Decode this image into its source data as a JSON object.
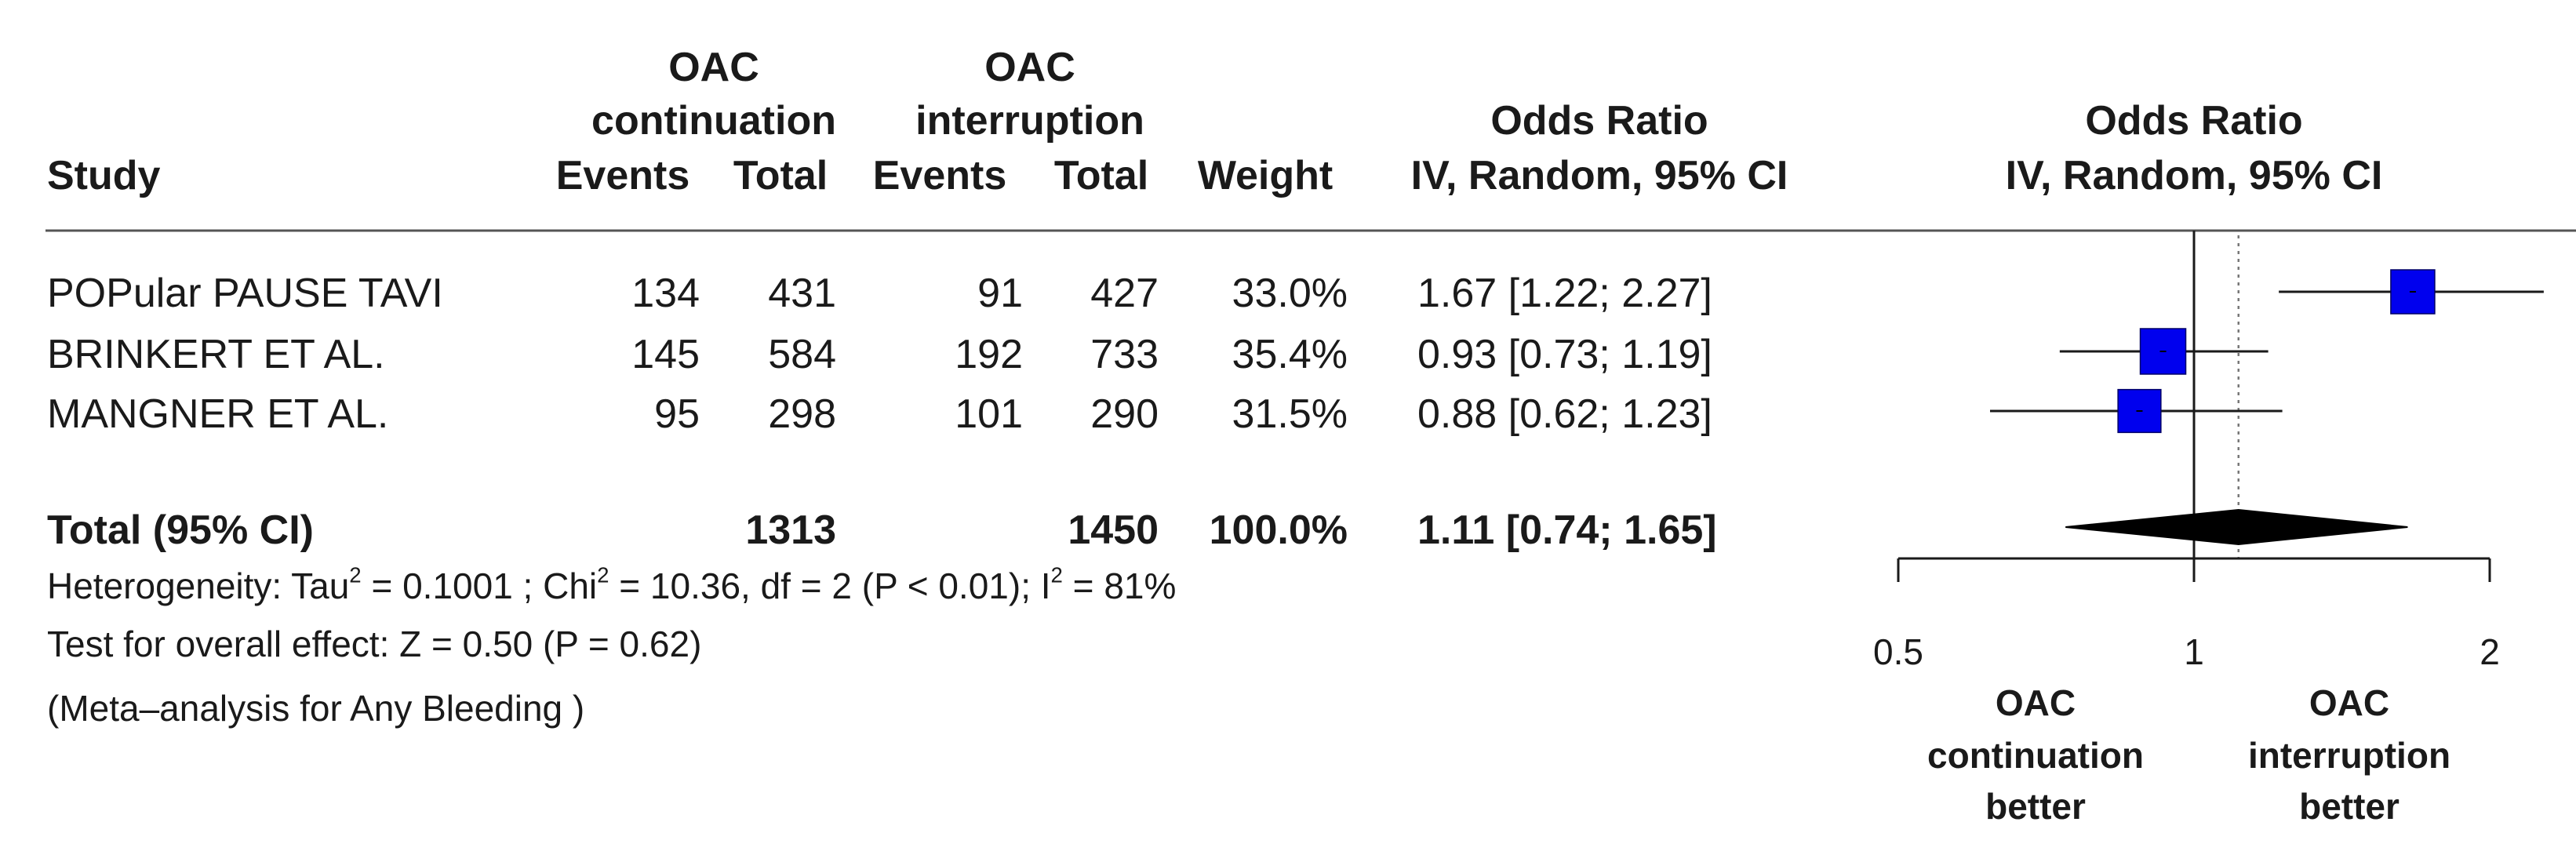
{
  "header": {
    "study": "Study",
    "group1": "OAC",
    "group1_sub": "continuation",
    "group2": "OAC",
    "group2_sub": "interruption",
    "events": "Events",
    "total": "Total",
    "weight": "Weight",
    "or_title": "Odds Ratio",
    "or_method": "IV, Random, 95% CI",
    "plot_title": "Odds Ratio",
    "plot_method": "IV, Random, 95% CI"
  },
  "studies": [
    {
      "name": "POPular PAUSE TAVI",
      "events1": "134",
      "total1": "431",
      "events2": "91",
      "total2": "427",
      "weight": "33.0%",
      "ci_text": "1.67 [1.22; 2.27]",
      "or": 1.67,
      "lower": 1.22,
      "upper": 2.27,
      "weight_value": 33.0
    },
    {
      "name": "BRINKERT ET AL.",
      "events1": "145",
      "total1": "584",
      "events2": "192",
      "total2": "733",
      "weight": "35.4%",
      "ci_text": "0.93 [0.73; 1.19]",
      "or": 0.93,
      "lower": 0.73,
      "upper": 1.19,
      "weight_value": 35.4
    },
    {
      "name": "MANGNER ET AL.",
      "events1": "95",
      "total1": "298",
      "events2": "101",
      "total2": "290",
      "weight": "31.5%",
      "ci_text": "0.88 [0.62; 1.23]",
      "or": 0.88,
      "lower": 0.62,
      "upper": 1.23,
      "weight_value": 31.5
    }
  ],
  "total": {
    "label": "Total (95% CI)",
    "total1": "1313",
    "total2": "1450",
    "weight": "100.0%",
    "ci_text": "1.11 [0.74; 1.65]",
    "or": 1.11,
    "lower": 0.74,
    "upper": 1.65
  },
  "footnotes": {
    "het_prefix": "Heterogeneity: Tau",
    "het_tau2": "= 0.1001 ; Chi",
    "het_chi2": "= 10.36, df = 2 (P < 0.01); I",
    "het_i2": "= 81%",
    "sup2": "2",
    "overall": "Test for overall effect: Z = 0.50 (P = 0.62)",
    "note": "(Meta–analysis for Any Bleeding )"
  },
  "axis": {
    "ticks": [
      0.5,
      1,
      2
    ],
    "tick_labels": [
      "0.5",
      "1",
      "2"
    ],
    "xlim": [
      0.5,
      2
    ],
    "scale": "log",
    "left_label": [
      "OAC",
      "continuation",
      "better"
    ],
    "right_label": [
      "OAC",
      "interruption",
      "better"
    ]
  },
  "chart_data": {
    "type": "forest",
    "scale": "log",
    "xlim": [
      0.5,
      2
    ],
    "ticks": [
      0.5,
      1,
      2
    ],
    "reference_line": 1,
    "pooled_line": 1.11,
    "studies": [
      {
        "name": "POPular PAUSE TAVI",
        "or": 1.67,
        "lower": 1.22,
        "upper": 2.27,
        "weight": 33.0
      },
      {
        "name": "BRINKERT ET AL.",
        "or": 0.93,
        "lower": 0.73,
        "upper": 1.19,
        "weight": 35.4
      },
      {
        "name": "MANGNER ET AL.",
        "or": 0.88,
        "lower": 0.62,
        "upper": 1.23,
        "weight": 31.5
      }
    ],
    "pooled": {
      "label": "Total (95% CI)",
      "or": 1.11,
      "lower": 0.74,
      "upper": 1.65
    },
    "colors": {
      "box": "#0000ee",
      "line": "#1a1a1a"
    }
  }
}
